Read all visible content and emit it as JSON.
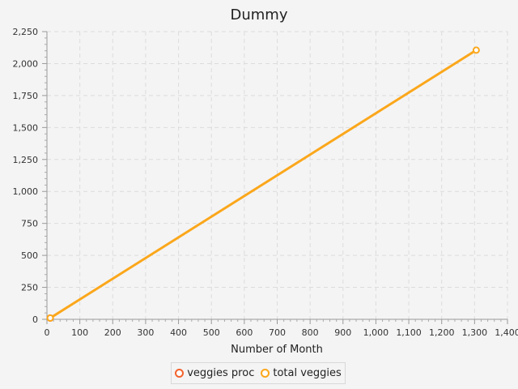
{
  "chart_data": {
    "type": "line",
    "title": "Dummy",
    "xlabel": "Number of Month",
    "ylabel": "",
    "xlim": [
      0,
      1400
    ],
    "ylim": [
      0,
      2250
    ],
    "x_ticks": [
      0,
      100,
      200,
      300,
      400,
      500,
      600,
      700,
      800,
      900,
      1000,
      1100,
      1200,
      1300,
      1400
    ],
    "x_tick_labels": [
      "0",
      "100",
      "200",
      "300",
      "400",
      "500",
      "600",
      "700",
      "800",
      "900",
      "1,000",
      "1,100",
      "1,200",
      "1,300",
      "1,400"
    ],
    "y_ticks": [
      0,
      250,
      500,
      750,
      1000,
      1250,
      1500,
      1750,
      2000,
      2250
    ],
    "y_tick_labels": [
      "0",
      "250",
      "500",
      "750",
      "1,000",
      "1,250",
      "1,500",
      "1,750",
      "2,000",
      "2,250"
    ],
    "grid": true,
    "legend_position": "bottom",
    "series": [
      {
        "name": "veggies proc",
        "color": "#f3622d",
        "points": [
          [
            10,
            10
          ]
        ]
      },
      {
        "name": "total veggies",
        "color": "#fba71b",
        "points": [
          [
            10,
            10
          ],
          [
            1305,
            2105
          ]
        ]
      }
    ]
  }
}
